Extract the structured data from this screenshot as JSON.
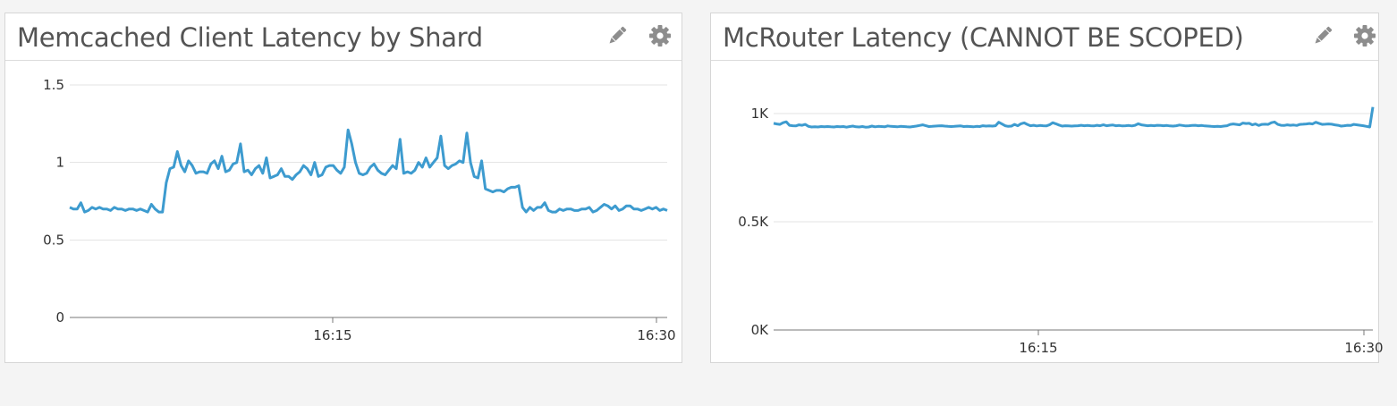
{
  "colors": {
    "series": "#3d9bcf",
    "grid": "#e3e3e3",
    "axis": "#777777",
    "title": "#545454"
  },
  "widgets": [
    {
      "title": "Memcached Client Latency by Shard",
      "edit_icon": "pencil-icon",
      "settings_icon": "gear-icon"
    },
    {
      "title": "McRouter Latency (CANNOT BE SCOPED)",
      "edit_icon": "pencil-icon",
      "settings_icon": "gear-icon"
    }
  ],
  "chart_data": [
    {
      "type": "line",
      "title": "Memcached Client Latency by Shard",
      "xlabel": "",
      "ylabel": "",
      "ylim": [
        0,
        1.5
      ],
      "yticks": [
        0,
        0.5,
        1,
        1.5
      ],
      "ytick_labels": [
        "0",
        "0.5",
        "1",
        "1.5"
      ],
      "xticks": [
        "16:15",
        "16:30"
      ],
      "grid": true,
      "series": [
        {
          "values": [
            0.71,
            0.7,
            0.7,
            0.74,
            0.68,
            0.69,
            0.71,
            0.7,
            0.71,
            0.7,
            0.7,
            0.69,
            0.71,
            0.7,
            0.7,
            0.69,
            0.7,
            0.7,
            0.69,
            0.7,
            0.69,
            0.68,
            0.73,
            0.7,
            0.68,
            0.68,
            0.87,
            0.96,
            0.97,
            1.07,
            0.98,
            0.94,
            1.01,
            0.98,
            0.93,
            0.94,
            0.94,
            0.93,
            0.99,
            1.01,
            0.96,
            1.04,
            0.94,
            0.95,
            0.99,
            1.0,
            1.12,
            0.94,
            0.95,
            0.92,
            0.96,
            0.98,
            0.93,
            1.03,
            0.9,
            0.91,
            0.92,
            0.96,
            0.91,
            0.91,
            0.89,
            0.92,
            0.94,
            0.98,
            0.96,
            0.92,
            1.0,
            0.91,
            0.92,
            0.97,
            0.98,
            0.98,
            0.95,
            0.93,
            0.97,
            1.21,
            1.12,
            1.0,
            0.93,
            0.92,
            0.93,
            0.97,
            0.99,
            0.95,
            0.93,
            0.92,
            0.95,
            0.98,
            0.96,
            1.15,
            0.93,
            0.94,
            0.93,
            0.95,
            1.0,
            0.97,
            1.03,
            0.97,
            1.0,
            1.03,
            1.17,
            0.98,
            0.96,
            0.98,
            0.99,
            1.01,
            1.0,
            1.19,
            1.0,
            0.91,
            0.9,
            1.01,
            0.83,
            0.82,
            0.81,
            0.82,
            0.82,
            0.81,
            0.83,
            0.84,
            0.84,
            0.85,
            0.71,
            0.68,
            0.71,
            0.69,
            0.71,
            0.71,
            0.74,
            0.69,
            0.68,
            0.68,
            0.7,
            0.69,
            0.7,
            0.7,
            0.69,
            0.69,
            0.7,
            0.7,
            0.71,
            0.68,
            0.69,
            0.71,
            0.73,
            0.72,
            0.7,
            0.72,
            0.69,
            0.7,
            0.72,
            0.72,
            0.7,
            0.7,
            0.69,
            0.7,
            0.71,
            0.7,
            0.71,
            0.69,
            0.7,
            0.69
          ]
        }
      ]
    },
    {
      "type": "line",
      "title": "McRouter Latency (CANNOT BE SCOPED)",
      "xlabel": "",
      "ylabel": "",
      "ylim": [
        0,
        1000
      ],
      "yticks": [
        0,
        500,
        1000
      ],
      "ytick_labels": [
        "0K",
        "0.5K",
        "1K"
      ],
      "xticks": [
        "16:15",
        "16:30"
      ],
      "grid": true,
      "series": [
        {
          "values": [
            955,
            952,
            950,
            958,
            962,
            946,
            944,
            943,
            948,
            946,
            950,
            941,
            938,
            939,
            938,
            940,
            939,
            940,
            939,
            938,
            940,
            939,
            940,
            937,
            940,
            942,
            939,
            938,
            940,
            937,
            938,
            942,
            939,
            941,
            940,
            939,
            943,
            941,
            940,
            939,
            941,
            940,
            939,
            938,
            940,
            942,
            945,
            948,
            944,
            940,
            941,
            942,
            943,
            944,
            942,
            941,
            940,
            941,
            942,
            943,
            940,
            941,
            940,
            939,
            941,
            940,
            944,
            942,
            943,
            942,
            944,
            960,
            952,
            944,
            941,
            942,
            950,
            944,
            953,
            957,
            950,
            944,
            946,
            943,
            945,
            944,
            943,
            948,
            958,
            953,
            947,
            942,
            944,
            943,
            942,
            943,
            944,
            946,
            944,
            945,
            944,
            943,
            946,
            944,
            948,
            944,
            946,
            947,
            944,
            945,
            943,
            944,
            945,
            943,
            946,
            953,
            948,
            946,
            944,
            945,
            944,
            946,
            945,
            944,
            945,
            943,
            942,
            944,
            947,
            945,
            943,
            944,
            945,
            946,
            944,
            945,
            943,
            942,
            941,
            940,
            941,
            940,
            942,
            944,
            950,
            952,
            950,
            948,
            956,
            954,
            955,
            948,
            952,
            945,
            950,
            951,
            950,
            958,
            961,
            950,
            946,
            945,
            948,
            946,
            947,
            945,
            950,
            951,
            952,
            954,
            952,
            960,
            955,
            950,
            951,
            952,
            951,
            948,
            946,
            942,
            944,
            946,
            945,
            950,
            948,
            946,
            944,
            941,
            938,
            1030
          ]
        }
      ]
    }
  ]
}
